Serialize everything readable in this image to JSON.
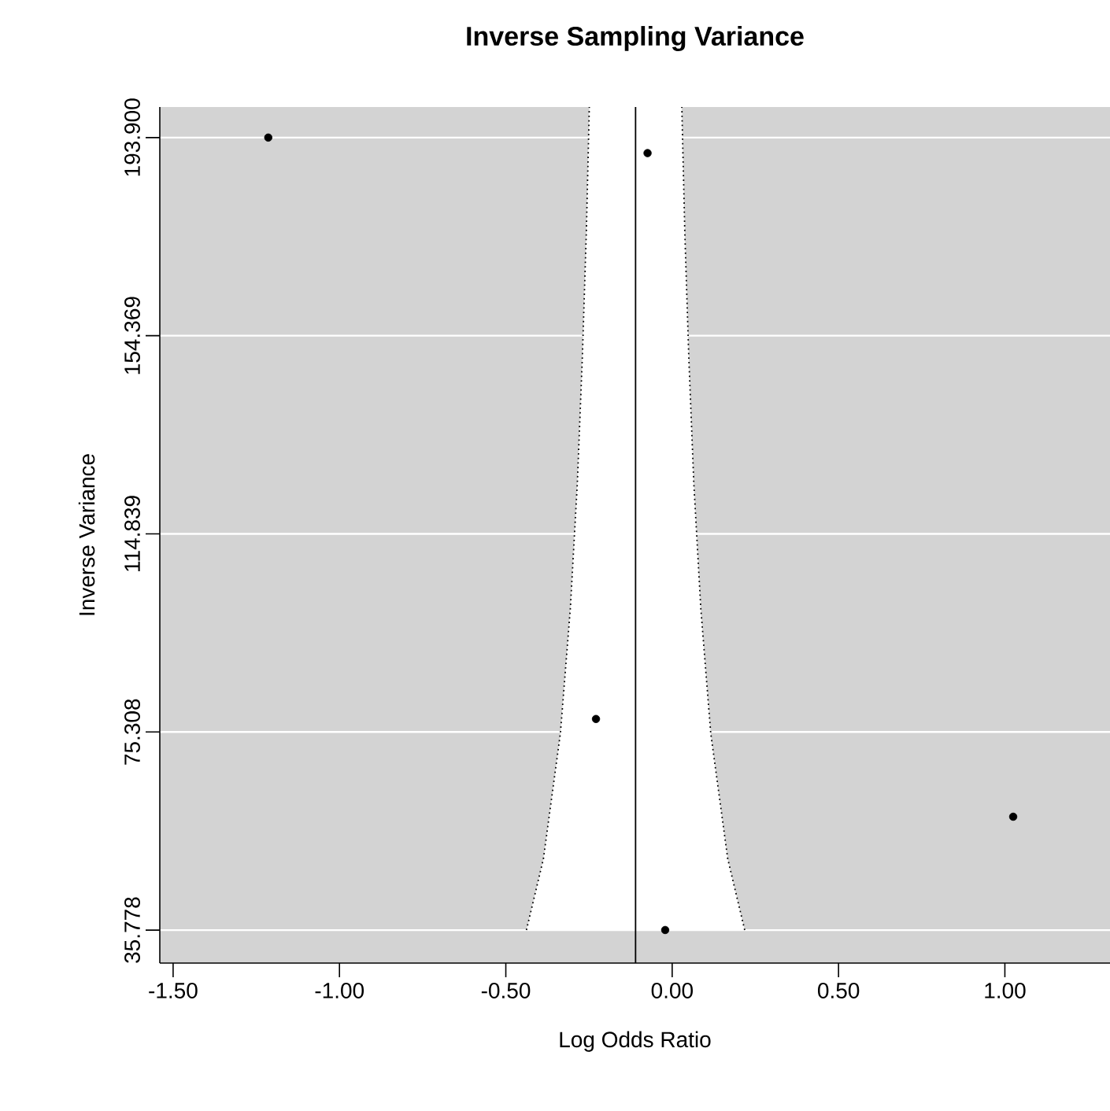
{
  "chart_data": {
    "type": "scatter",
    "title": "Inverse Sampling Variance",
    "xlabel": "Log Odds Ratio",
    "ylabel": "Inverse Variance",
    "xlim": [
      -1.54,
      1.316
    ],
    "ylim": [
      29.2,
      200.0
    ],
    "xticks": [
      {
        "value": -1.5,
        "label": "-1.50"
      },
      {
        "value": -1.0,
        "label": "-1.00"
      },
      {
        "value": -0.5,
        "label": "-0.50"
      },
      {
        "value": 0.0,
        "label": "0.00"
      },
      {
        "value": 0.5,
        "label": "0.50"
      },
      {
        "value": 1.0,
        "label": "1.00"
      }
    ],
    "yticks": [
      35.778,
      75.308,
      114.839,
      154.369,
      {
        "value": 193.9,
        "label": "193.900"
      }
    ],
    "grid": "y",
    "ref_lines": [
      {
        "axis": "x",
        "value": -0.11,
        "color": "#000000"
      }
    ],
    "series": [
      {
        "color": "#000000",
        "marker": "circle",
        "x": [
          -1.214,
          -0.074,
          -0.229,
          1.025,
          -0.021
        ],
        "values": [
          193.9,
          190.8,
          77.9,
          58.4,
          35.8
        ]
      },
      {
        "type": "line",
        "color": "#000000",
        "line_style": "dotted",
        "marker": "none",
        "x": [
          -0.438,
          -0.387,
          -0.336,
          -0.306,
          -0.285,
          -0.27,
          -0.258,
          -0.249
        ],
        "values": [
          35.8,
          50,
          75,
          100,
          125,
          150,
          175,
          200.0
        ]
      },
      {
        "type": "line",
        "color": "#000000",
        "line_style": "dotted",
        "marker": "none",
        "x": [
          0.218,
          0.167,
          0.116,
          0.086,
          0.065,
          0.05,
          0.038,
          0.029
        ],
        "values": [
          35.8,
          50,
          75,
          100,
          125,
          150,
          175,
          200.0
        ]
      }
    ]
  }
}
